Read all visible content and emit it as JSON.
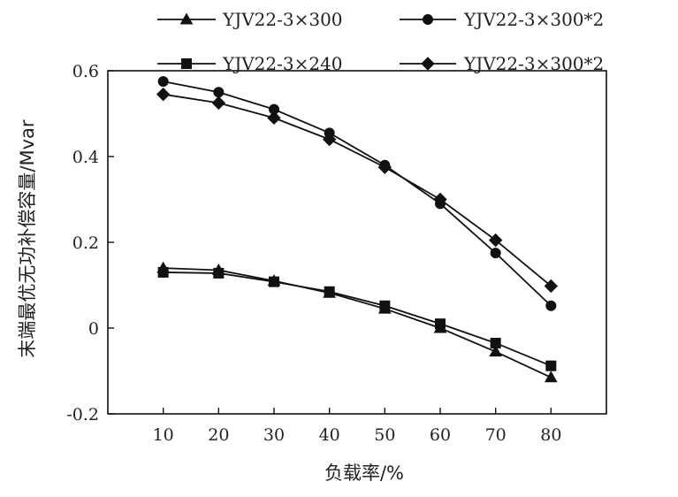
{
  "chart_data": {
    "type": "line",
    "title": "",
    "xlabel": "负载率/%",
    "ylabel": "末端最优无功补偿容量/Mvar",
    "x": [
      10,
      20,
      30,
      40,
      50,
      60,
      70,
      80
    ],
    "x_ticks": [
      "10",
      "20",
      "30",
      "40",
      "50",
      "60",
      "70",
      "80"
    ],
    "y_ticks": [
      "-0.2",
      "0",
      "0.2",
      "0.4",
      "0.6"
    ],
    "ylim": [
      -0.2,
      0.6
    ],
    "xlim": [
      0,
      90
    ],
    "legend_position": "top",
    "series": [
      {
        "name": "YJV22-3×300",
        "marker": "triangle",
        "values": [
          0.14,
          0.135,
          0.11,
          0.082,
          0.045,
          0.0,
          -0.055,
          -0.115
        ]
      },
      {
        "name": "YJV22-3×240",
        "marker": "square",
        "values": [
          0.13,
          0.128,
          0.108,
          0.085,
          0.052,
          0.01,
          -0.035,
          -0.088
        ]
      },
      {
        "name": "YJV22-3×300*2",
        "marker": "circle",
        "values": [
          0.575,
          0.55,
          0.51,
          0.455,
          0.38,
          0.29,
          0.175,
          0.052
        ]
      },
      {
        "name": "YJV22-3×300*2",
        "marker": "diamond",
        "values": [
          0.545,
          0.525,
          0.49,
          0.44,
          0.375,
          0.3,
          0.205,
          0.098
        ]
      }
    ],
    "color": "#111111"
  }
}
